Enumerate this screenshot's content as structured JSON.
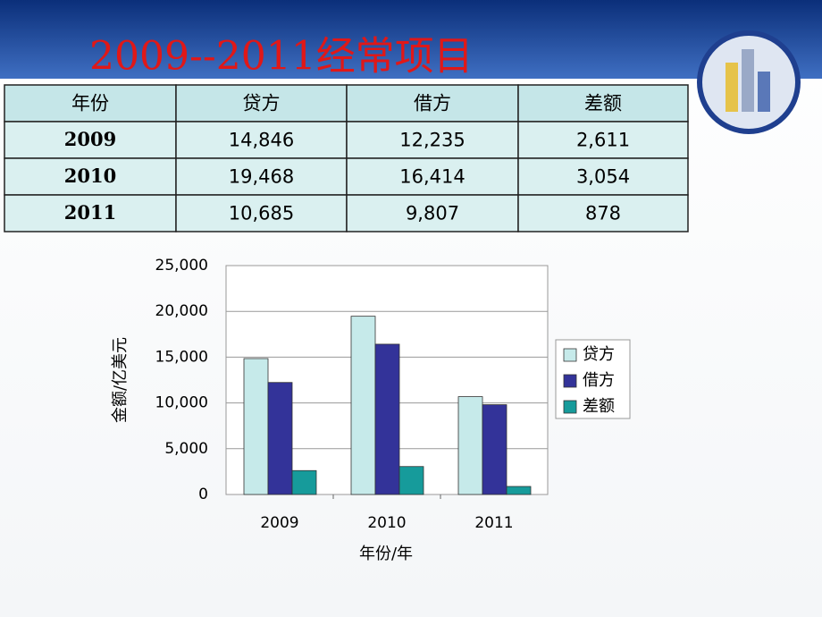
{
  "title": "2009--2011经常项目",
  "table": {
    "header": [
      "年份",
      "贷方",
      "借方",
      "差额"
    ],
    "rows": [
      [
        "2009",
        "14,846",
        "12,235",
        "2,611"
      ],
      [
        "2010",
        "19,468",
        "16,414",
        "3,054"
      ],
      [
        "2011",
        "10,685",
        "9,807",
        "878"
      ]
    ]
  },
  "chart_data": {
    "type": "bar",
    "categories": [
      "2009",
      "2010",
      "2011"
    ],
    "series": [
      {
        "name": "贷方",
        "color": "#c6eaea",
        "values": [
          14846,
          19468,
          10685
        ]
      },
      {
        "name": "借方",
        "color": "#333399",
        "values": [
          12235,
          16414,
          9807
        ]
      },
      {
        "name": "差额",
        "color": "#169b9b",
        "values": [
          2611,
          3054,
          878
        ]
      }
    ],
    "ylim": [
      0,
      25000
    ],
    "yticks": [
      0,
      {
        "value": 5000,
        "label": "5,000"
      },
      {
        "value": 10000,
        "label": "10,000"
      },
      {
        "value": 15000,
        "label": "15,000"
      },
      {
        "value": 20000,
        "label": "20,000"
      },
      {
        "value": 25000,
        "label": "25,000"
      }
    ],
    "y_label": "金额/亿美元",
    "x_label": "年份/年",
    "grid": true,
    "legend": "right"
  }
}
